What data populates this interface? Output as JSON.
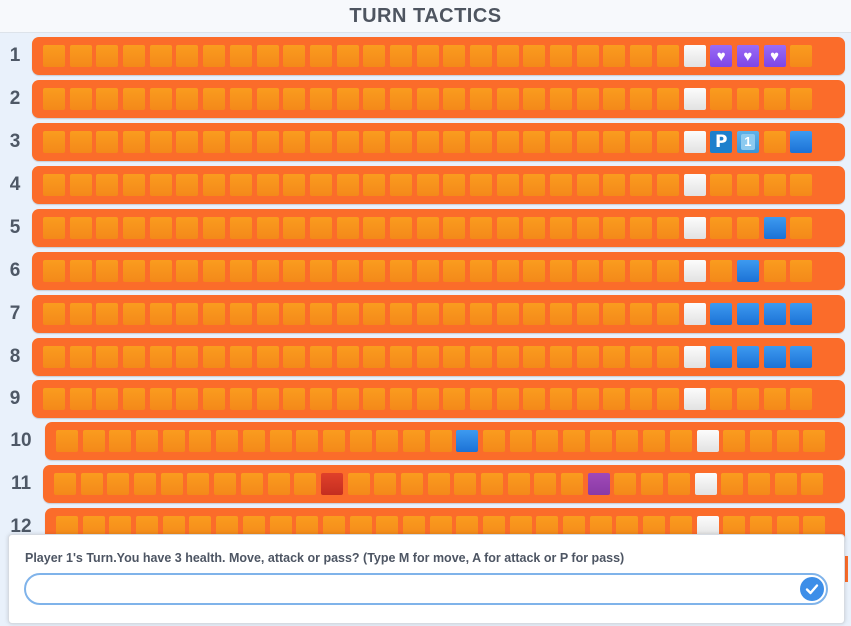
{
  "header": {
    "title": "TURN TACTICS"
  },
  "board": {
    "rows": [
      {
        "label": "1",
        "cells": [
          "o",
          "o",
          "o",
          "o",
          "o",
          "o",
          "o",
          "o",
          "o",
          "o",
          "o",
          "o",
          "o",
          "o",
          "o",
          "o",
          "o",
          "o",
          "o",
          "o",
          "o",
          "o",
          "o",
          "o",
          "white",
          "heart",
          "heart",
          "heart",
          "o"
        ]
      },
      {
        "label": "2",
        "cells": [
          "o",
          "o",
          "o",
          "o",
          "o",
          "o",
          "o",
          "o",
          "o",
          "o",
          "o",
          "o",
          "o",
          "o",
          "o",
          "o",
          "o",
          "o",
          "o",
          "o",
          "o",
          "o",
          "o",
          "o",
          "white",
          "o",
          "o",
          "o",
          "o"
        ]
      },
      {
        "label": "3",
        "cells": [
          "o",
          "o",
          "o",
          "o",
          "o",
          "o",
          "o",
          "o",
          "o",
          "o",
          "o",
          "o",
          "o",
          "o",
          "o",
          "o",
          "o",
          "o",
          "o",
          "o",
          "o",
          "o",
          "o",
          "o",
          "white",
          "parking",
          "one",
          "o",
          "blue"
        ]
      },
      {
        "label": "4",
        "cells": [
          "o",
          "o",
          "o",
          "o",
          "o",
          "o",
          "o",
          "o",
          "o",
          "o",
          "o",
          "o",
          "o",
          "o",
          "o",
          "o",
          "o",
          "o",
          "o",
          "o",
          "o",
          "o",
          "o",
          "o",
          "white",
          "o",
          "o",
          "o",
          "o"
        ]
      },
      {
        "label": "5",
        "cells": [
          "o",
          "o",
          "o",
          "o",
          "o",
          "o",
          "o",
          "o",
          "o",
          "o",
          "o",
          "o",
          "o",
          "o",
          "o",
          "o",
          "o",
          "o",
          "o",
          "o",
          "o",
          "o",
          "o",
          "o",
          "white",
          "o",
          "o",
          "blue",
          "o"
        ]
      },
      {
        "label": "6",
        "cells": [
          "o",
          "o",
          "o",
          "o",
          "o",
          "o",
          "o",
          "o",
          "o",
          "o",
          "o",
          "o",
          "o",
          "o",
          "o",
          "o",
          "o",
          "o",
          "o",
          "o",
          "o",
          "o",
          "o",
          "o",
          "white",
          "o",
          "blue",
          "o",
          "o"
        ]
      },
      {
        "label": "7",
        "cells": [
          "o",
          "o",
          "o",
          "o",
          "o",
          "o",
          "o",
          "o",
          "o",
          "o",
          "o",
          "o",
          "o",
          "o",
          "o",
          "o",
          "o",
          "o",
          "o",
          "o",
          "o",
          "o",
          "o",
          "o",
          "white",
          "blue",
          "blue",
          "blue",
          "blue"
        ]
      },
      {
        "label": "8",
        "cells": [
          "o",
          "o",
          "o",
          "o",
          "o",
          "o",
          "o",
          "o",
          "o",
          "o",
          "o",
          "o",
          "o",
          "o",
          "o",
          "o",
          "o",
          "o",
          "o",
          "o",
          "o",
          "o",
          "o",
          "o",
          "white",
          "blue",
          "blue",
          "blue",
          "blue"
        ]
      },
      {
        "label": "9",
        "cells": [
          "o",
          "o",
          "o",
          "o",
          "o",
          "o",
          "o",
          "o",
          "o",
          "o",
          "o",
          "o",
          "o",
          "o",
          "o",
          "o",
          "o",
          "o",
          "o",
          "o",
          "o",
          "o",
          "o",
          "o",
          "white",
          "o",
          "o",
          "o",
          "o"
        ]
      },
      {
        "label": "10",
        "cells": [
          "o",
          "o",
          "o",
          "o",
          "o",
          "o",
          "o",
          "o",
          "o",
          "o",
          "o",
          "o",
          "o",
          "o",
          "o",
          "blue",
          "o",
          "o",
          "o",
          "o",
          "o",
          "o",
          "o",
          "o",
          "white",
          "o",
          "o",
          "o",
          "o"
        ]
      },
      {
        "label": "11",
        "cells": [
          "o",
          "o",
          "o",
          "o",
          "o",
          "o",
          "o",
          "o",
          "o",
          "o",
          "red",
          "o",
          "o",
          "o",
          "o",
          "o",
          "o",
          "o",
          "o",
          "o",
          "purple",
          "o",
          "o",
          "o",
          "white",
          "o",
          "o",
          "o",
          "o"
        ]
      },
      {
        "label": "12",
        "cells": [
          "o",
          "o",
          "o",
          "o",
          "o",
          "o",
          "o",
          "o",
          "o",
          "o",
          "o",
          "o",
          "o",
          "o",
          "o",
          "o",
          "o",
          "o",
          "o",
          "o",
          "o",
          "o",
          "o",
          "o",
          "white",
          "o",
          "o",
          "o",
          "o"
        ]
      }
    ],
    "glyphs": {
      "heart": "♥",
      "parking": "P",
      "one": "1"
    }
  },
  "dialog": {
    "prompt": "Player 1's Turn.You have 3 health. Move, attack or pass? (Type M for move, A for attack or P for pass)",
    "input_value": "",
    "input_placeholder": ""
  },
  "colors": {
    "bar": "#fb6c2a",
    "tile": "#f7931c",
    "accent": "#3d8ee8"
  }
}
